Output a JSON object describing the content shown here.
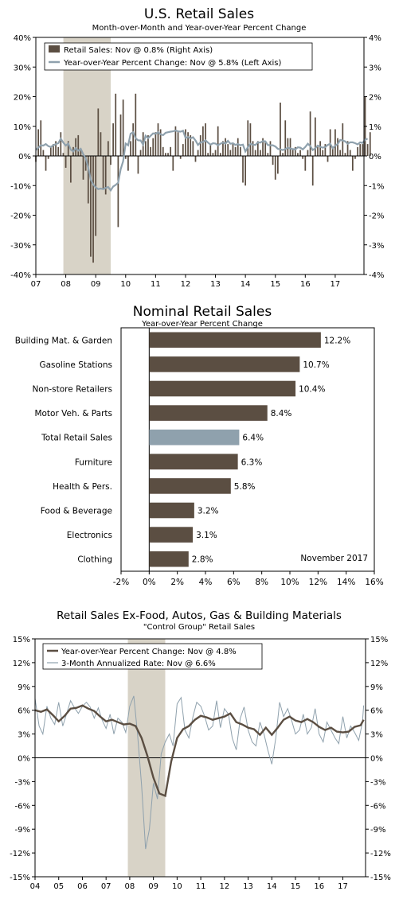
{
  "chart_data": [
    {
      "type": "bar+line",
      "title": "U.S. Retail Sales",
      "subtitle": "Month-over-Month and Year-over-Year Percent Change",
      "legend": [
        "Retail Sales: Nov @ 0.8% (Right Axis)",
        "Year-over-Year Percent Change: Nov @ 5.8% (Left Axis)"
      ],
      "legend_position": "top-left",
      "x_ticks": [
        "07",
        "08",
        "09",
        "10",
        "11",
        "12",
        "13",
        "14",
        "15",
        "16",
        "17"
      ],
      "x_range": [
        2007.0,
        2017.96
      ],
      "left_axis": {
        "ticks": [
          "-40%",
          "-30%",
          "-20%",
          "-10%",
          "0%",
          "10%",
          "20%",
          "30%",
          "40%"
        ],
        "ylim": [
          -40,
          40
        ]
      },
      "right_axis": {
        "ticks": [
          "-4%",
          "-3%",
          "-2%",
          "-1%",
          "0%",
          "1%",
          "2%",
          "3%",
          "4%"
        ],
        "ylim": [
          -4,
          4
        ]
      },
      "recession_shading": [
        2007.92,
        2009.5
      ],
      "series": [
        {
          "name": "Retail Sales",
          "kind": "bar",
          "axis": "right",
          "color": "#5b4e42",
          "x_start": 2007.0,
          "x_step": 0.083333,
          "values": [
            -0.2,
            0.9,
            1.2,
            0.2,
            -0.5,
            -0.1,
            0.3,
            0.4,
            0.5,
            0.3,
            0.8,
            0.1,
            -0.4,
            0.5,
            -0.9,
            0.3,
            0.6,
            0.7,
            0.2,
            -0.8,
            -0.5,
            -1.6,
            -3.4,
            -3.6,
            -2.7,
            1.6,
            0.8,
            -1.1,
            -1.3,
            0.5,
            -0.3,
            1.1,
            2.1,
            -2.4,
            1.4,
            1.9,
            -0.1,
            -0.5,
            0.5,
            1.1,
            2.1,
            -0.6,
            0.2,
            0.8,
            0.5,
            0.7,
            0.3,
            0.6,
            0.8,
            1.1,
            0.9,
            0.3,
            0.1,
            0.1,
            0.3,
            -0.5,
            1.0,
            0.8,
            -0.1,
            0.4,
            0.9,
            0.8,
            0.7,
            0.5,
            -0.2,
            0.2,
            0.7,
            1.0,
            1.1,
            0.1,
            0.4,
            0.1,
            0.2,
            1.0,
            0.1,
            0.5,
            0.6,
            0.4,
            0.2,
            0.4,
            0.3,
            0.6,
            0.3,
            -0.9,
            -1.0,
            1.2,
            1.1,
            0.5,
            0.2,
            0.5,
            0.2,
            0.6,
            0.5,
            0.1,
            0.5,
            -0.3,
            -0.8,
            -0.6,
            1.8,
            0.1,
            1.2,
            0.6,
            0.6,
            0.2,
            0.3,
            0.1,
            0.2,
            -0.1,
            -0.5,
            0.2,
            1.5,
            -1.0,
            1.3,
            0.3,
            0.5,
            0.2,
            0.4,
            -0.2,
            0.9,
            0.3,
            0.9,
            0.6,
            0.2,
            1.1,
            0.1,
            0.5,
            0.2,
            -0.5,
            -0.1,
            0.3,
            0.4,
            0.4,
            2.0,
            0.4,
            0.8
          ],
          "annotation": "Nov @ 0.8%"
        },
        {
          "name": "Year-over-Year Percent Change",
          "kind": "line",
          "axis": "left",
          "color": "#8fa1ad",
          "x_start": 2007.0,
          "x_step": 0.083333,
          "values": [
            2.0,
            2.8,
            3.6,
            3.5,
            4.0,
            3.3,
            3.0,
            3.6,
            4.0,
            4.3,
            5.8,
            4.5,
            3.5,
            4.2,
            2.1,
            1.5,
            2.6,
            1.8,
            2.4,
            0.6,
            -0.8,
            -4.0,
            -7.9,
            -9.6,
            -10.6,
            -11.2,
            -11.0,
            -11.2,
            -10.8,
            -10.5,
            -11.6,
            -10.3,
            -9.8,
            -9.0,
            -4.5,
            -1.8,
            4.2,
            3.6,
            7.5,
            8.0,
            6.0,
            5.3,
            5.2,
            3.8,
            6.8,
            6.0,
            6.8,
            7.6,
            7.5,
            8.0,
            7.3,
            7.0,
            7.8,
            8.0,
            8.2,
            8.3,
            8.6,
            8.3,
            8.2,
            8.5,
            6.1,
            6.4,
            5.9,
            6.3,
            5.2,
            3.7,
            4.6,
            4.7,
            5.3,
            4.5,
            3.8,
            4.3,
            4.2,
            3.6,
            4.1,
            4.5,
            4.2,
            5.1,
            4.1,
            4.3,
            3.7,
            4.0,
            3.6,
            3.8,
            1.5,
            3.0,
            4.1,
            3.8,
            3.7,
            4.6,
            4.5,
            5.0,
            4.9,
            3.7,
            3.6,
            3.6,
            3.2,
            2.4,
            2.2,
            2.0,
            2.3,
            2.8,
            2.5,
            2.3,
            2.2,
            2.9,
            2.8,
            2.2,
            3.0,
            4.1,
            3.3,
            2.0,
            2.6,
            3.5,
            3.1,
            2.8,
            3.0,
            3.7,
            4.1,
            2.6,
            3.5,
            4.0,
            5.4,
            5.2,
            4.9,
            4.1,
            4.6,
            4.6,
            4.3,
            3.9,
            4.6,
            4.4,
            5.5,
            5.8
          ],
          "annotation": "Nov @ 5.8%"
        }
      ]
    },
    {
      "type": "bar",
      "orientation": "horizontal",
      "title": "Nominal Retail Sales",
      "subtitle": "Year-over-Year Percent Change",
      "annotation": "November 2017",
      "categories": [
        "Building Mat. & Garden",
        "Gasoline Stations",
        "Non-store Retailers",
        "Motor Veh. & Parts",
        "Total Retail Sales",
        "Furniture",
        "Health & Pers.",
        "Food & Beverage",
        "Electronics",
        "Clothing"
      ],
      "values": [
        12.2,
        10.7,
        10.4,
        8.4,
        6.4,
        6.3,
        5.8,
        3.2,
        3.1,
        2.8
      ],
      "value_labels": [
        "12.2%",
        "10.7%",
        "10.4%",
        "8.4%",
        "6.4%",
        "6.3%",
        "5.8%",
        "3.2%",
        "3.1%",
        "2.8%"
      ],
      "highlight": "Total Retail Sales",
      "colors": {
        "bar": "#5b4e42",
        "highlight": "#8fa1ad"
      },
      "x_ticks": [
        "-2%",
        "0%",
        "2%",
        "4%",
        "6%",
        "8%",
        "10%",
        "12%",
        "14%",
        "16%"
      ],
      "xlim": [
        -2,
        16
      ]
    },
    {
      "type": "line",
      "title": "Retail Sales Ex-Food, Autos, Gas & Building Materials",
      "subtitle": "\"Control Group\" Retail Sales",
      "legend": [
        "Year-over-Year Percent Change: Nov @ 4.8%",
        "3-Month Annualized Rate: Nov @ 6.6%"
      ],
      "legend_position": "top-left",
      "x_ticks": [
        "04",
        "05",
        "06",
        "07",
        "08",
        "09",
        "10",
        "11",
        "12",
        "13",
        "14",
        "15",
        "16",
        "17"
      ],
      "x_range": [
        2004.0,
        2017.96
      ],
      "left_axis": {
        "ticks": [
          "-15%",
          "-12%",
          "-9%",
          "-6%",
          "-3%",
          "0%",
          "3%",
          "6%",
          "9%",
          "12%",
          "15%"
        ],
        "ylim": [
          -15,
          15
        ]
      },
      "right_axis": {
        "ticks": [
          "-15%",
          "-12%",
          "-9%",
          "-6%",
          "-3%",
          "0%",
          "3%",
          "6%",
          "9%",
          "12%",
          "15%"
        ],
        "ylim": [
          -15,
          15
        ]
      },
      "recession_shading": [
        2007.92,
        2009.5
      ],
      "series": [
        {
          "name": "Year-over-Year Percent Change",
          "color": "#5b4e42",
          "x": [
            2004.0,
            2004.25,
            2004.5,
            2004.75,
            2005.0,
            2005.25,
            2005.5,
            2005.75,
            2006.0,
            2006.25,
            2006.5,
            2006.75,
            2007.0,
            2007.25,
            2007.5,
            2007.75,
            2008.0,
            2008.25,
            2008.5,
            2008.75,
            2009.0,
            2009.25,
            2009.5,
            2009.75,
            2010.0,
            2010.25,
            2010.5,
            2010.75,
            2011.0,
            2011.25,
            2011.5,
            2011.75,
            2012.0,
            2012.25,
            2012.5,
            2012.75,
            2013.0,
            2013.25,
            2013.5,
            2013.75,
            2014.0,
            2014.25,
            2014.5,
            2014.75,
            2015.0,
            2015.25,
            2015.5,
            2015.75,
            2016.0,
            2016.25,
            2016.5,
            2016.75,
            2017.0,
            2017.25,
            2017.5,
            2017.75,
            2017.88
          ],
          "values": [
            6.0,
            5.8,
            6.1,
            5.4,
            4.6,
            5.3,
            6.2,
            6.3,
            6.6,
            6.2,
            5.9,
            5.2,
            4.6,
            4.8,
            4.5,
            4.2,
            4.3,
            4.0,
            2.5,
            0.2,
            -2.5,
            -4.5,
            -4.8,
            -0.5,
            2.5,
            3.6,
            4.0,
            4.8,
            5.3,
            5.1,
            4.8,
            5.0,
            5.2,
            5.6,
            4.5,
            4.2,
            3.8,
            3.6,
            2.9,
            3.8,
            2.9,
            3.8,
            4.8,
            5.2,
            4.7,
            4.5,
            4.9,
            4.5,
            3.9,
            3.5,
            3.8,
            3.3,
            3.2,
            3.3,
            3.9,
            4.1,
            4.8
          ],
          "annotation": "Nov @ 4.8%"
        },
        {
          "name": "3-Month Annualized Rate",
          "color": "#8fa1ad",
          "x": [
            2004.0,
            2004.17,
            2004.33,
            2004.5,
            2004.67,
            2004.83,
            2005.0,
            2005.17,
            2005.33,
            2005.5,
            2005.67,
            2005.83,
            2006.0,
            2006.17,
            2006.33,
            2006.5,
            2006.67,
            2006.83,
            2007.0,
            2007.17,
            2007.33,
            2007.5,
            2007.67,
            2007.83,
            2008.0,
            2008.17,
            2008.33,
            2008.5,
            2008.67,
            2008.83,
            2009.0,
            2009.17,
            2009.33,
            2009.5,
            2009.67,
            2009.83,
            2010.0,
            2010.17,
            2010.33,
            2010.5,
            2010.67,
            2010.83,
            2011.0,
            2011.17,
            2011.33,
            2011.5,
            2011.67,
            2011.83,
            2012.0,
            2012.17,
            2012.33,
            2012.5,
            2012.67,
            2012.83,
            2013.0,
            2013.17,
            2013.33,
            2013.5,
            2013.67,
            2013.83,
            2014.0,
            2014.17,
            2014.33,
            2014.5,
            2014.67,
            2014.83,
            2015.0,
            2015.17,
            2015.33,
            2015.5,
            2015.67,
            2015.83,
            2016.0,
            2016.17,
            2016.33,
            2016.5,
            2016.67,
            2016.83,
            2017.0,
            2017.17,
            2017.33,
            2017.5,
            2017.67,
            2017.83,
            2017.88
          ],
          "values": [
            7.5,
            4.0,
            3.0,
            6.5,
            5.0,
            4.2,
            7.0,
            4.0,
            5.5,
            7.2,
            6.3,
            5.6,
            6.5,
            7.0,
            6.4,
            5.0,
            6.3,
            4.8,
            3.7,
            5.5,
            3.0,
            5.0,
            4.5,
            3.2,
            6.5,
            7.8,
            3.0,
            -3.5,
            -11.5,
            -9.0,
            -3.2,
            -5.2,
            0.5,
            2.0,
            3.0,
            1.5,
            6.8,
            7.6,
            3.5,
            2.5,
            5.2,
            7.0,
            6.5,
            5.2,
            3.5,
            4.0,
            7.2,
            3.8,
            6.2,
            5.5,
            2.5,
            1.0,
            5.0,
            6.4,
            3.5,
            2.0,
            1.5,
            4.5,
            3.0,
            1.0,
            -0.8,
            2.5,
            7.0,
            5.2,
            6.2,
            4.8,
            3.0,
            3.5,
            5.5,
            3.0,
            3.8,
            6.2,
            3.0,
            2.0,
            4.5,
            3.5,
            2.5,
            1.8,
            5.2,
            2.5,
            4.0,
            3.2,
            2.2,
            4.5,
            6.6
          ],
          "annotation": "Nov @ 6.6%"
        }
      ]
    }
  ]
}
